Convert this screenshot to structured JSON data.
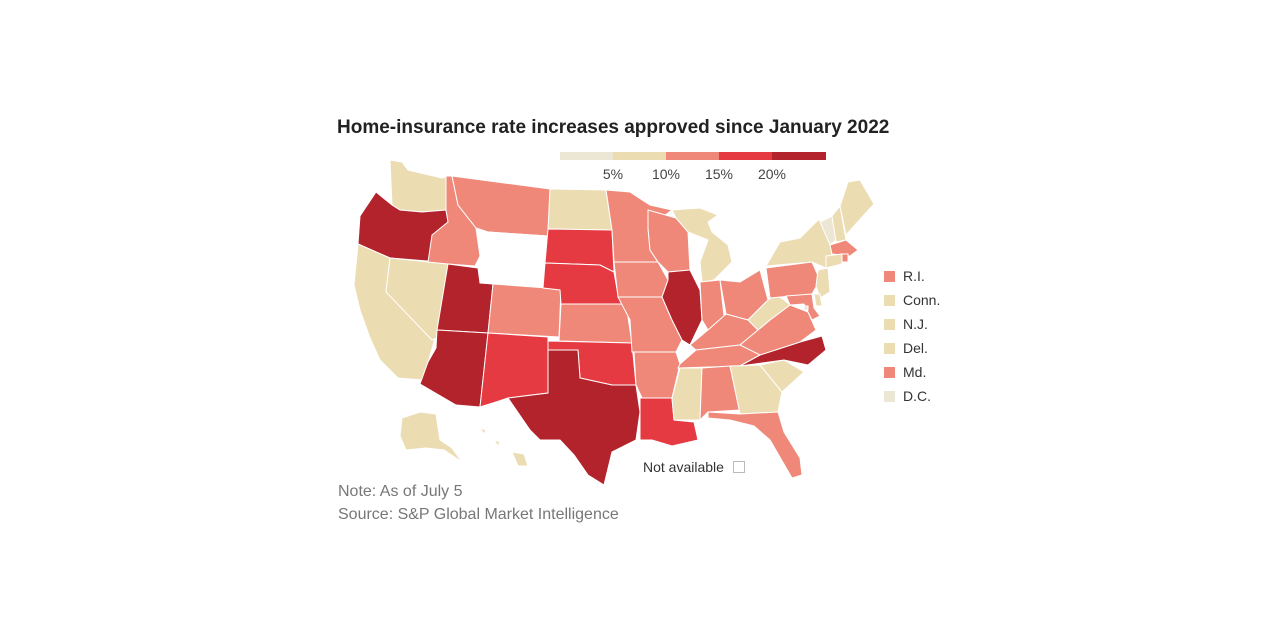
{
  "title": "Home-insurance rate increases approved since January 2022",
  "colors": {
    "b0": "#ece6d4",
    "b1": "#ecdcb2",
    "b2": "#ef8878",
    "b3": "#e63a42",
    "b4": "#b2232c",
    "na": "#ffffff"
  },
  "scale": {
    "ticks": [
      "5%",
      "10%",
      "15%",
      "20%"
    ],
    "bins": [
      "b0",
      "b1",
      "b2",
      "b3",
      "b4"
    ]
  },
  "inset_legend": [
    {
      "label": "R.I.",
      "bin": "b2"
    },
    {
      "label": "Conn.",
      "bin": "b1"
    },
    {
      "label": "N.J.",
      "bin": "b1"
    },
    {
      "label": "Del.",
      "bin": "b1"
    },
    {
      "label": "Md.",
      "bin": "b2"
    },
    {
      "label": "D.C.",
      "bin": "b0"
    }
  ],
  "not_available_label": "Not available",
  "note": "Note: As of July 5",
  "source": "Source: S&P Global Market Intelligence",
  "states": {
    "WA": "b1",
    "OR": "b4",
    "CA": "b1",
    "NV": "b1",
    "ID": "b2",
    "MT": "b2",
    "WY": "na",
    "UT": "b4",
    "AZ": "b4",
    "CO": "b2",
    "NM": "b3",
    "ND": "b1",
    "SD": "b3",
    "NE": "b3",
    "KS": "b2",
    "OK": "b3",
    "TX": "b4",
    "MN": "b2",
    "IA": "b2",
    "MO": "b2",
    "AR": "b2",
    "LA": "b3",
    "WI": "b2",
    "IL": "b4",
    "MI": "b1",
    "IN": "b2",
    "OH": "b2",
    "KY": "b2",
    "TN": "b2",
    "MS": "b1",
    "AL": "b2",
    "GA": "b1",
    "FL": "b2",
    "SC": "b1",
    "NC": "b4",
    "VA": "b2",
    "WV": "b1",
    "PA": "b2",
    "NY": "b1",
    "VT": "b0",
    "NH": "b1",
    "ME": "b1",
    "MA": "b2",
    "RI": "b2",
    "CT": "b1",
    "NJ": "b1",
    "DE": "b1",
    "MD": "b2",
    "DC": "b0",
    "AK": "b1",
    "HI": "b1"
  }
}
